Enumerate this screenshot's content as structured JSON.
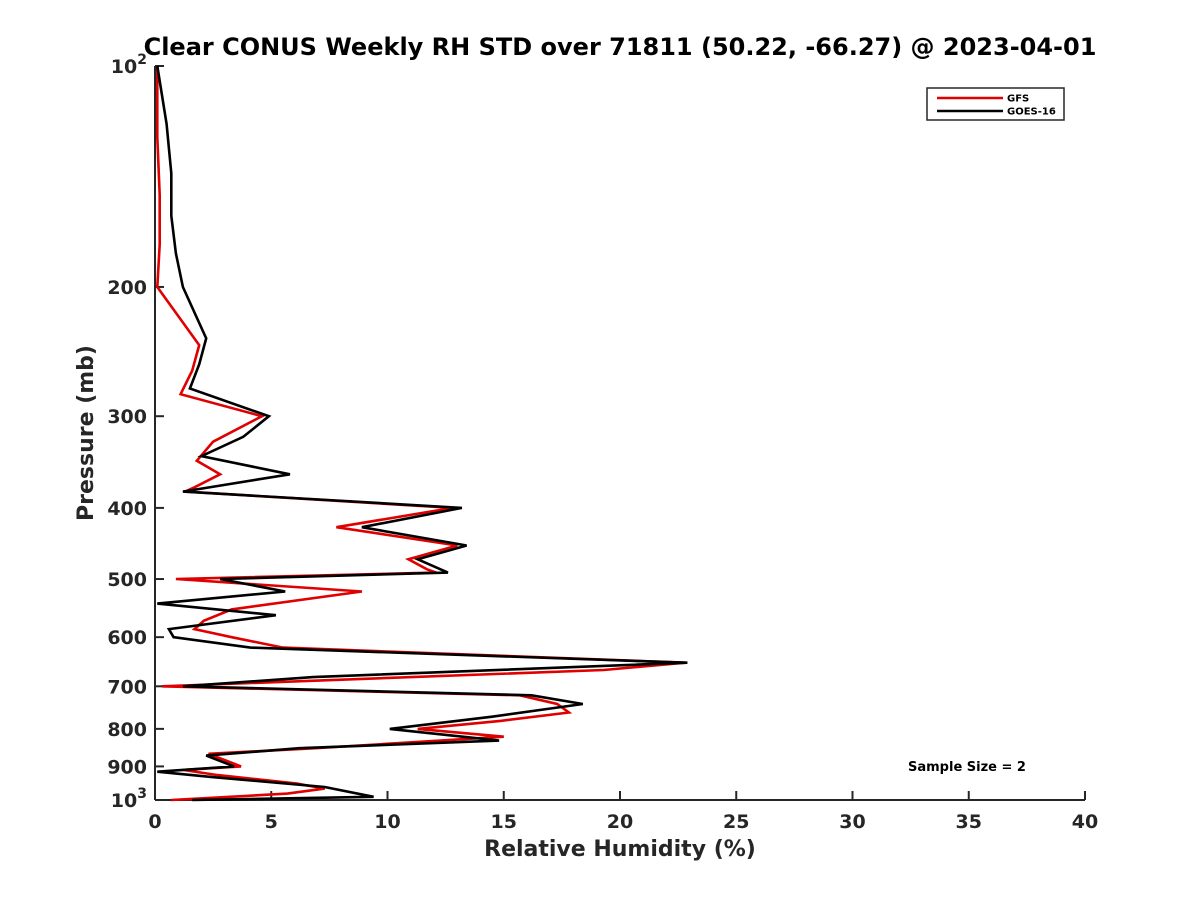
{
  "chart_data": {
    "type": "line",
    "title": "Clear CONUS Weekly RH STD over 71811 (50.22, -66.27) @ 2023-04-01",
    "xlabel": "Relative Humidity (%)",
    "ylabel": "Pressure (mb)",
    "xlim": [
      0,
      40
    ],
    "ylim": [
      100,
      1000
    ],
    "y_scale": "log",
    "y_reversed": true,
    "grid": false,
    "legend_position": "top-right",
    "x_ticks": [
      "0",
      "5",
      "10",
      "15",
      "20",
      "25",
      "30",
      "35",
      "40"
    ],
    "y_ticks": [
      {
        "value": 100,
        "base": "10",
        "exp": "2"
      },
      {
        "value": 200,
        "label": "200"
      },
      {
        "value": 300,
        "label": "300"
      },
      {
        "value": 400,
        "label": "400"
      },
      {
        "value": 500,
        "label": "500"
      },
      {
        "value": 600,
        "label": "600"
      },
      {
        "value": 700,
        "label": "700"
      },
      {
        "value": 800,
        "label": "800"
      },
      {
        "value": 900,
        "label": "900"
      },
      {
        "value": 1000,
        "base": "10",
        "exp": "3"
      }
    ],
    "annotation": "Sample Size = 2",
    "series": [
      {
        "name": "GFS",
        "color": "#e00000",
        "points": [
          [
            0.1,
            100
          ],
          [
            0.1,
            125
          ],
          [
            0.2,
            150
          ],
          [
            0.2,
            175
          ],
          [
            0.1,
            200
          ],
          [
            1.9,
            240
          ],
          [
            1.6,
            260
          ],
          [
            1.1,
            280
          ],
          [
            4.6,
            300
          ],
          [
            2.5,
            325
          ],
          [
            1.8,
            345
          ],
          [
            2.8,
            360
          ],
          [
            1.7,
            375
          ],
          [
            1.3,
            380
          ],
          [
            12.8,
            400
          ],
          [
            7.8,
            425
          ],
          [
            13.0,
            450
          ],
          [
            10.9,
            470
          ],
          [
            11.7,
            485
          ],
          [
            12.1,
            490
          ],
          [
            0.9,
            500
          ],
          [
            8.9,
            520
          ],
          [
            3.3,
            550
          ],
          [
            2.1,
            570
          ],
          [
            1.7,
            585
          ],
          [
            3.3,
            600
          ],
          [
            5.5,
            620
          ],
          [
            22.8,
            650
          ],
          [
            19.3,
            665
          ],
          [
            0.3,
            700
          ],
          [
            15.7,
            720
          ],
          [
            17.3,
            740
          ],
          [
            17.8,
            760
          ],
          [
            14.9,
            780
          ],
          [
            11.3,
            800
          ],
          [
            15.0,
            820
          ],
          [
            6.9,
            850
          ],
          [
            2.3,
            865
          ],
          [
            3.7,
            900
          ],
          [
            1.2,
            910
          ],
          [
            2.7,
            925
          ],
          [
            6.1,
            950
          ],
          [
            7.3,
            965
          ],
          [
            5.7,
            980
          ],
          [
            0.7,
            1000
          ]
        ]
      },
      {
        "name": "GOES-16",
        "color": "#000000",
        "points": [
          [
            0.1,
            100
          ],
          [
            0.5,
            120
          ],
          [
            0.7,
            140
          ],
          [
            0.7,
            160
          ],
          [
            0.9,
            180
          ],
          [
            1.2,
            200
          ],
          [
            2.2,
            235
          ],
          [
            1.9,
            255
          ],
          [
            1.5,
            275
          ],
          [
            4.9,
            300
          ],
          [
            3.8,
            320
          ],
          [
            2.0,
            340
          ],
          [
            5.8,
            360
          ],
          [
            1.2,
            380
          ],
          [
            13.2,
            400
          ],
          [
            8.9,
            425
          ],
          [
            13.4,
            450
          ],
          [
            11.3,
            470
          ],
          [
            12.6,
            490
          ],
          [
            2.8,
            500
          ],
          [
            5.6,
            520
          ],
          [
            0.1,
            540
          ],
          [
            5.2,
            560
          ],
          [
            0.6,
            585
          ],
          [
            0.8,
            600
          ],
          [
            4.1,
            620
          ],
          [
            22.9,
            650
          ],
          [
            6.8,
            680
          ],
          [
            1.2,
            700
          ],
          [
            16.2,
            720
          ],
          [
            18.4,
            740
          ],
          [
            14.5,
            770
          ],
          [
            10.1,
            800
          ],
          [
            14.8,
            830
          ],
          [
            6.2,
            850
          ],
          [
            2.2,
            870
          ],
          [
            3.4,
            900
          ],
          [
            0.1,
            915
          ],
          [
            2.4,
            930
          ],
          [
            7.3,
            960
          ],
          [
            9.4,
            990
          ],
          [
            1.6,
            1000
          ]
        ]
      }
    ]
  }
}
